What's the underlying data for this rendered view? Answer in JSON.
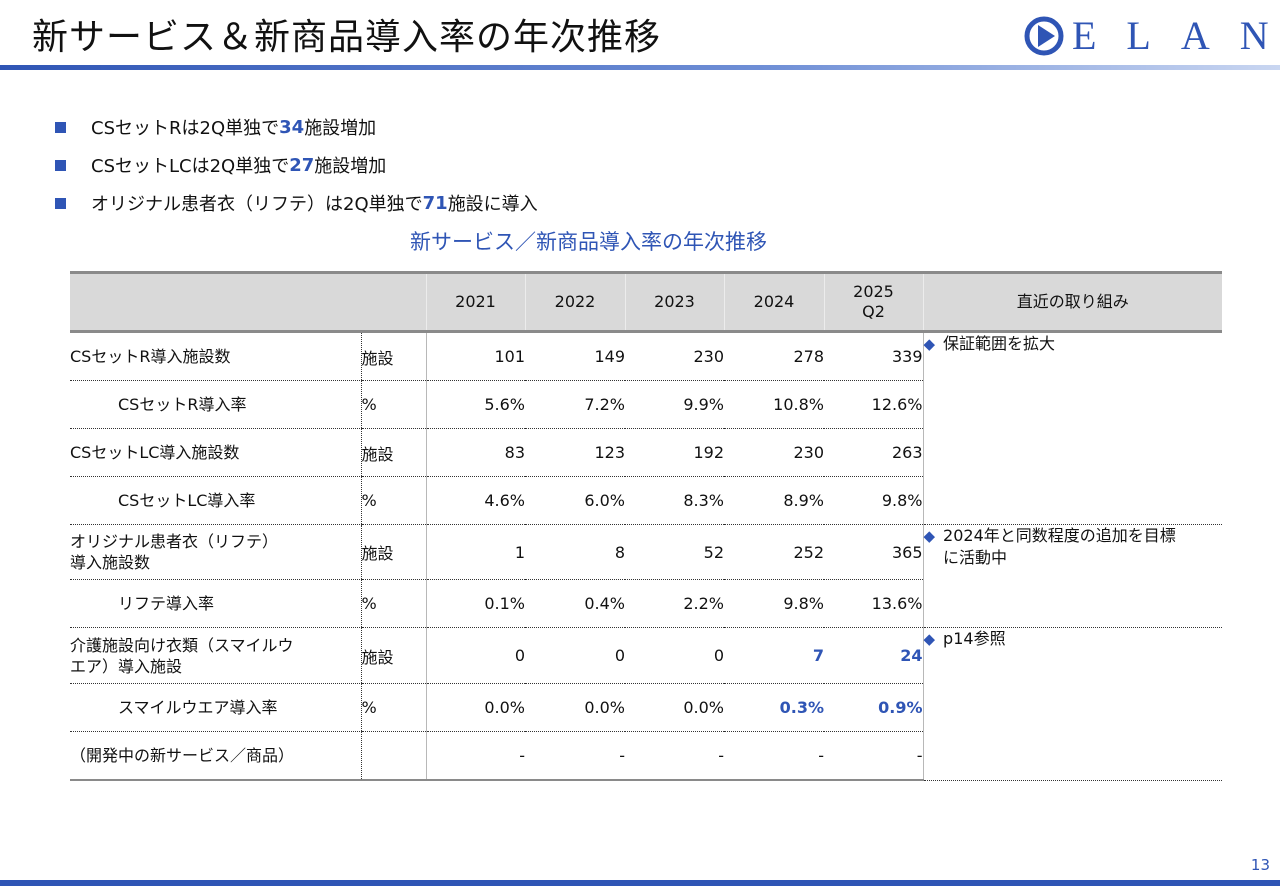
{
  "header": {
    "title": "新サービス＆新商品導入率の年次推移",
    "logo_text": "ELAN",
    "accent_color": "#2f55b5"
  },
  "bullets": [
    {
      "pre": "CSセットRは2Q単独で",
      "num": "34",
      "post": "施設増加"
    },
    {
      "pre": "CSセットLCは2Q単独で",
      "num": "27",
      "post": "施設増加"
    },
    {
      "pre": "オリジナル患者衣（リフテ）は2Q単独で",
      "num": "71",
      "post": "施設に導入"
    }
  ],
  "table_title": "新サービス／新商品導入率の年次推移",
  "table": {
    "headers": [
      "2021",
      "2022",
      "2023",
      "2024",
      "2025",
      "Q2",
      "直近の取り組み"
    ],
    "rows": [
      {
        "label": "CSセットR導入施設数",
        "unit": "施設",
        "values": [
          "101",
          "149",
          "230",
          "278",
          "339"
        ]
      },
      {
        "label": "CSセットR導入率",
        "unit": "%",
        "values": [
          "5.6%",
          "7.2%",
          "9.9%",
          "10.8%",
          "12.6%"
        ]
      },
      {
        "label": "CSセットLC導入施設数",
        "unit": "施設",
        "values": [
          "83",
          "123",
          "192",
          "230",
          "263"
        ]
      },
      {
        "label": "CSセットLC導入率",
        "unit": "%",
        "values": [
          "4.6%",
          "6.0%",
          "8.3%",
          "8.9%",
          "9.8%"
        ]
      },
      {
        "label_line1": "オリジナル患者衣（リフテ）",
        "label_line2": "導入施設数",
        "unit": "施設",
        "values": [
          "1",
          "8",
          "52",
          "252",
          "365"
        ]
      },
      {
        "label": "リフテ導入率",
        "unit": "%",
        "values": [
          "0.1%",
          "0.4%",
          "2.2%",
          "9.8%",
          "13.6%"
        ]
      },
      {
        "label_line1": "介護施設向け衣類（スマイルウ",
        "label_line2": "エア）導入施設",
        "unit": "施設",
        "values": [
          "0",
          "0",
          "0",
          "7",
          "24"
        ]
      },
      {
        "label": "スマイルウエア導入率",
        "unit": "%",
        "values": [
          "0.0%",
          "0.0%",
          "0.0%",
          "0.3%",
          "0.9%"
        ]
      },
      {
        "label": "（開発中の新サービス／商品）",
        "unit": "",
        "values": [
          "-",
          "-",
          "-",
          "-",
          "-"
        ]
      }
    ],
    "initiatives": {
      "warranty": "保証範囲を拡大",
      "activity_line1": "2024年と同数程度の追加を目標",
      "activity_line2": "に活動中",
      "reference": "p14参照"
    }
  },
  "page_number": "13"
}
